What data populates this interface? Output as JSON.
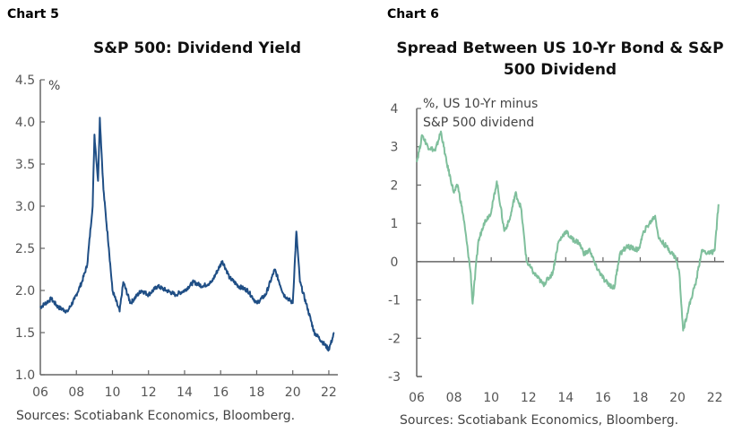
{
  "charts": [
    {
      "label": "Chart 5",
      "title": "S&P 500: Dividend Yield",
      "unit_label": [
        "%"
      ],
      "source": "Sources: Scotiabank Economics, Bloomberg.",
      "color": "#1f4e85"
    },
    {
      "label": "Chart 6",
      "title": "Spread Between US 10-Yr Bond & S&P 500 Dividend",
      "title_lines": [
        "Spread Between US 10-Yr Bond & S&P",
        "500 Dividend"
      ],
      "unit_label": [
        "%, US 10-Yr minus",
        "S&P 500 dividend"
      ],
      "source": "Sources: Scotiabank Economics, Bloomberg.",
      "color": "#7fbf9c"
    }
  ],
  "chart_data": [
    {
      "type": "line",
      "title": "S&P 500: Dividend Yield",
      "xlabel": "",
      "ylabel": "%",
      "xlim": [
        2006,
        2022.5
      ],
      "ylim": [
        1.0,
        4.5
      ],
      "yticks": [
        "4.5",
        "4.0",
        "3.5",
        "3.0",
        "2.5",
        "2.0",
        "1.5",
        "1.0"
      ],
      "ytick_values": [
        4.5,
        4.0,
        3.5,
        3.0,
        2.5,
        2.0,
        1.5,
        1.0
      ],
      "xticks": [
        "06",
        "08",
        "10",
        "12",
        "14",
        "16",
        "18",
        "20",
        "22"
      ],
      "xtick_values": [
        2006,
        2008,
        2010,
        2012,
        2014,
        2016,
        2018,
        2020,
        2022
      ],
      "grid": false,
      "series": [
        {
          "name": "S&P 500 dividend yield",
          "x": [
            2006.0,
            2006.3,
            2006.6,
            2007.0,
            2007.5,
            2007.9,
            2008.3,
            2008.6,
            2008.9,
            2009.0,
            2009.2,
            2009.3,
            2009.5,
            2009.8,
            2010.0,
            2010.4,
            2010.6,
            2011.0,
            2011.6,
            2012.0,
            2012.5,
            2013.0,
            2013.5,
            2014.0,
            2014.5,
            2015.0,
            2015.5,
            2016.1,
            2016.5,
            2017.0,
            2017.5,
            2018.0,
            2018.5,
            2019.0,
            2019.5,
            2020.0,
            2020.2,
            2020.4,
            2020.8,
            2021.2,
            2021.6,
            2022.0,
            2022.3
          ],
          "values": [
            1.8,
            1.85,
            1.9,
            1.8,
            1.75,
            1.9,
            2.1,
            2.3,
            3.0,
            3.85,
            3.3,
            4.05,
            3.2,
            2.5,
            2.0,
            1.75,
            2.1,
            1.85,
            2.0,
            1.95,
            2.05,
            2.0,
            1.95,
            2.0,
            2.1,
            2.05,
            2.1,
            2.35,
            2.15,
            2.05,
            2.0,
            1.85,
            1.95,
            2.25,
            1.95,
            1.85,
            2.7,
            2.1,
            1.8,
            1.5,
            1.4,
            1.3,
            1.5
          ]
        }
      ]
    },
    {
      "type": "line",
      "title": "Spread Between US 10-Yr Bond & S&P 500 Dividend",
      "xlabel": "",
      "ylabel": "%, US 10-Yr minus S&P 500 dividend",
      "xlim": [
        2006,
        2022.5
      ],
      "ylim": [
        -3,
        4
      ],
      "yticks": [
        "4",
        "3",
        "2",
        "1",
        "0",
        "-1",
        "-2",
        "-3"
      ],
      "ytick_values": [
        4,
        3,
        2,
        1,
        0,
        -1,
        -2,
        -3
      ],
      "xticks": [
        "06",
        "08",
        "10",
        "12",
        "14",
        "16",
        "18",
        "20",
        "22"
      ],
      "xtick_values": [
        2006,
        2008,
        2010,
        2012,
        2014,
        2016,
        2018,
        2020,
        2022
      ],
      "grid": false,
      "zero_line": true,
      "series": [
        {
          "name": "US 10-Yr minus S&P 500 dividend",
          "x": [
            2006.0,
            2006.3,
            2006.6,
            2007.0,
            2007.3,
            2007.6,
            2008.0,
            2008.2,
            2008.5,
            2008.9,
            2009.0,
            2009.3,
            2009.6,
            2010.0,
            2010.3,
            2010.7,
            2011.0,
            2011.3,
            2011.6,
            2011.9,
            2012.3,
            2012.8,
            2013.3,
            2013.6,
            2014.0,
            2014.3,
            2014.7,
            2015.0,
            2015.3,
            2015.6,
            2016.1,
            2016.6,
            2016.9,
            2017.3,
            2017.9,
            2018.2,
            2018.8,
            2019.0,
            2019.4,
            2019.9,
            2020.1,
            2020.3,
            2020.6,
            2021.0,
            2021.3,
            2021.7,
            2022.0,
            2022.2
          ],
          "values": [
            2.6,
            3.3,
            3.0,
            2.9,
            3.4,
            2.6,
            1.8,
            2.0,
            1.2,
            -0.3,
            -1.1,
            0.5,
            1.0,
            1.3,
            2.1,
            0.8,
            1.1,
            1.8,
            1.4,
            0.0,
            -0.3,
            -0.6,
            -0.3,
            0.5,
            0.8,
            0.6,
            0.5,
            0.2,
            0.3,
            -0.1,
            -0.5,
            -0.7,
            0.2,
            0.4,
            0.3,
            0.8,
            1.2,
            0.6,
            0.4,
            0.1,
            -0.3,
            -1.8,
            -1.2,
            -0.5,
            0.3,
            0.2,
            0.3,
            1.5
          ]
        }
      ]
    }
  ]
}
